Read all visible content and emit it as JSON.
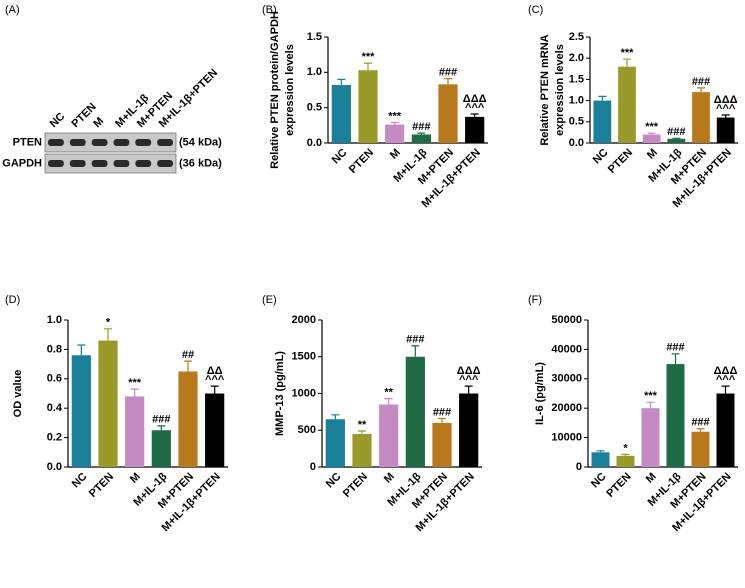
{
  "chart_data": [
    {
      "type": "blot",
      "panel": "(A)",
      "categories": [
        "NC",
        "PTEN",
        "M",
        "M+IL-1β",
        "M+PTEN",
        "M+IL-1β+PTEN"
      ],
      "rows": [
        {
          "name": "PTEN",
          "label": "(54 kDa)"
        },
        {
          "name": "GAPDH",
          "label": "(36 kDa)"
        }
      ]
    },
    {
      "type": "bar",
      "panel": "(B)",
      "ylabel": [
        "Relative PTEN protein/GAPDH",
        "expression levels"
      ],
      "categories": [
        "NC",
        "PTEN",
        "M",
        "M+IL-1β",
        "M+PTEN",
        "M+IL-1β+PTEN"
      ],
      "values": [
        0.82,
        1.03,
        0.26,
        0.12,
        0.83,
        0.37
      ],
      "errors": [
        0.08,
        0.1,
        0.03,
        0.02,
        0.08,
        0.04
      ],
      "colors": [
        "#1a7f99",
        "#9a9a2a",
        "#c58ac1",
        "#1f6b45",
        "#b8791d",
        "#000000"
      ],
      "annotations": [
        null,
        [
          "***"
        ],
        [
          "***"
        ],
        [
          "###"
        ],
        [
          "###"
        ],
        [
          "ΔΔΔ",
          "^^^"
        ]
      ],
      "ylim": [
        0,
        1.5
      ],
      "yticks": [
        {
          "value": 0,
          "label": "0.0"
        },
        0.5,
        {
          "value": 1,
          "label": "1.0"
        },
        1.5
      ]
    },
    {
      "type": "bar",
      "panel": "(C)",
      "ylabel": [
        "Relative PTEN  mRNA",
        "expression levels"
      ],
      "categories": [
        "NC",
        "PTEN",
        "M",
        "M+IL-1β",
        "M+PTEN",
        "M+IL-1β+PTEN"
      ],
      "values": [
        1.0,
        1.8,
        0.2,
        0.1,
        1.2,
        0.6
      ],
      "errors": [
        0.1,
        0.18,
        0.03,
        0.01,
        0.1,
        0.06
      ],
      "colors": [
        "#1a7f99",
        "#9a9a2a",
        "#c58ac1",
        "#1f6b45",
        "#b8791d",
        "#000000"
      ],
      "annotations": [
        null,
        [
          "***"
        ],
        [
          "***"
        ],
        [
          "###"
        ],
        [
          "###"
        ],
        [
          "ΔΔΔ",
          "^^^"
        ]
      ],
      "ylim": [
        0,
        2.5
      ],
      "yticks": [
        {
          "value": 0,
          "label": "0.0"
        },
        0.5,
        {
          "value": 1,
          "label": "1.0"
        },
        1.5,
        {
          "value": 2,
          "label": "2.0"
        },
        2.5
      ]
    },
    {
      "type": "bar",
      "panel": "(D)",
      "ylabel": [
        "OD value"
      ],
      "categories": [
        "NC",
        "PTEN",
        "M",
        "M+IL-1β",
        "M+PTEN",
        "M+IL-1β+PTEN"
      ],
      "values": [
        0.76,
        0.86,
        0.48,
        0.25,
        0.65,
        0.5
      ],
      "errors": [
        0.07,
        0.08,
        0.05,
        0.03,
        0.07,
        0.05
      ],
      "colors": [
        "#1a7f99",
        "#9a9a2a",
        "#c58ac1",
        "#1f6b45",
        "#b8791d",
        "#000000"
      ],
      "annotations": [
        null,
        [
          "*"
        ],
        [
          "***"
        ],
        [
          "###"
        ],
        [
          "##"
        ],
        [
          "ΔΔ",
          "^^^"
        ]
      ],
      "ylim": [
        0,
        1
      ],
      "yticks": [
        {
          "value": 0,
          "label": "0.0"
        },
        0.2,
        0.4,
        0.6,
        0.8,
        {
          "value": 1,
          "label": "1.0"
        }
      ]
    },
    {
      "type": "bar",
      "panel": "(E)",
      "ylabel": [
        "MMP-13 (pg/mL)"
      ],
      "categories": [
        "NC",
        "PTEN",
        "M",
        "M+IL-1β",
        "M+PTEN",
        "M+IL-1β+PTEN"
      ],
      "values": [
        650,
        450,
        850,
        1500,
        600,
        1000
      ],
      "errors": [
        60,
        40,
        80,
        150,
        60,
        100
      ],
      "colors": [
        "#1a7f99",
        "#9a9a2a",
        "#c58ac1",
        "#1f6b45",
        "#b8791d",
        "#000000"
      ],
      "annotations": [
        null,
        [
          "**"
        ],
        [
          "**"
        ],
        [
          "###"
        ],
        [
          "###"
        ],
        [
          "ΔΔΔ",
          "^^^"
        ]
      ],
      "ylim": [
        0,
        2000
      ],
      "yticks": [
        0,
        500,
        1000,
        1500,
        2000
      ]
    },
    {
      "type": "bar",
      "panel": "(F)",
      "ylabel": [
        "IL-6 (pg/mL)"
      ],
      "categories": [
        "NC",
        "PTEN",
        "M",
        "M+IL-1β",
        "M+PTEN",
        "M+IL-1β+PTEN"
      ],
      "values": [
        5000,
        3800,
        20000,
        35000,
        12000,
        25000
      ],
      "errors": [
        500,
        500,
        2000,
        3500,
        1000,
        2500
      ],
      "colors": [
        "#1a7f99",
        "#9a9a2a",
        "#c58ac1",
        "#1f6b45",
        "#b8791d",
        "#000000"
      ],
      "annotations": [
        null,
        [
          "*"
        ],
        [
          "***"
        ],
        [
          "###"
        ],
        [
          "###"
        ],
        [
          "ΔΔΔ",
          "^^^"
        ]
      ],
      "ylim": [
        0,
        50000
      ],
      "yticks": [
        0,
        10000,
        20000,
        30000,
        40000,
        50000
      ]
    }
  ]
}
